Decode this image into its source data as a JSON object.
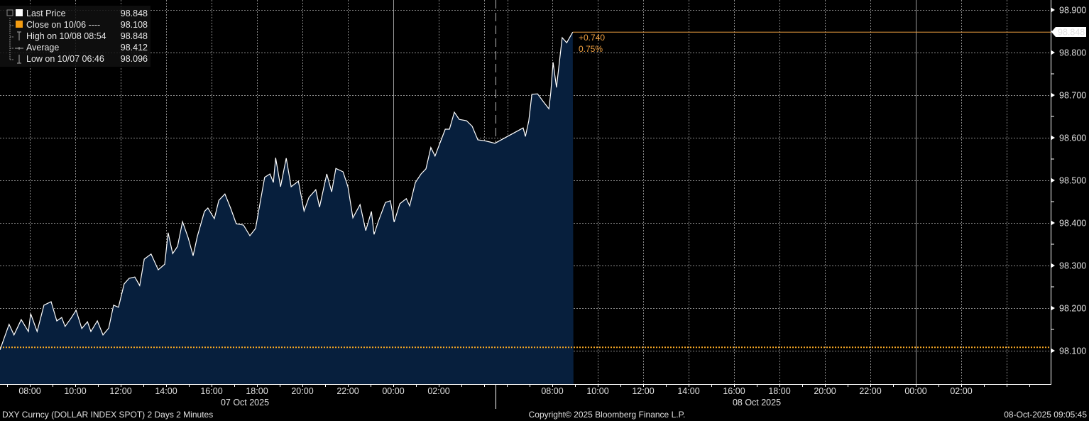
{
  "legend": {
    "items": [
      {
        "label": "Last Price",
        "value": "98.848",
        "icon": "white-square-icon"
      },
      {
        "label": "Close on 10/06 ----",
        "value": "98.108",
        "icon": "orange-square-icon"
      },
      {
        "label": "High on 10/08 08:54",
        "value": "98.848",
        "icon": "high-marker-icon"
      },
      {
        "label": "Average",
        "value": "98.412",
        "icon": "average-marker-icon"
      },
      {
        "label": "Low on 10/07 06:46",
        "value": "98.096",
        "icon": "low-marker-icon"
      }
    ]
  },
  "annotations": {
    "change": "+0.740",
    "change_pct": "0.75%",
    "last_tag": "98.848"
  },
  "footer": {
    "left": "DXY Curncy (DOLLAR INDEX SPOT) 2 Days 2 Minutes",
    "center": "Copyright© 2025 Bloomberg Finance L.P.",
    "right": "08-Oct-2025 09:05:45"
  },
  "colors": {
    "background": "#000000",
    "line": "#ffffff",
    "fill": "#071f3d",
    "close": "#f5a623",
    "last": "#f0a040",
    "grid": "#8a8a8a"
  },
  "chart_data": {
    "type": "area",
    "title": "",
    "xlabel": "",
    "ylabel": "",
    "ylim": [
      98.03,
      98.92
    ],
    "yticks": [
      "98.100",
      "98.200",
      "98.300",
      "98.400",
      "98.500",
      "98.600",
      "98.700",
      "98.800",
      "98.900"
    ],
    "grid": true,
    "legend_position": "top-left",
    "y_axis_side": "right",
    "close_reference": 98.108,
    "last_price": 98.848,
    "x_days": [
      {
        "date": "07 Oct 2025",
        "ticks": [
          "08:00",
          "10:00",
          "12:00",
          "14:00",
          "16:00",
          "18:00",
          "20:00",
          "22:00",
          "00:00",
          "02:00"
        ]
      },
      {
        "date": "08 Oct 2025",
        "ticks": [
          "08:00",
          "10:00",
          "12:00",
          "14:00",
          "16:00",
          "18:00",
          "20:00",
          "22:00",
          "00:00",
          "02:00"
        ]
      }
    ],
    "series": [
      {
        "points": [
          [
            "10/07 06:41",
            98.102
          ],
          [
            "10/07 07:05",
            98.162
          ],
          [
            "10/07 07:18",
            98.137
          ],
          [
            "10/07 07:37",
            98.173
          ],
          [
            "10/07 07:56",
            98.145
          ],
          [
            "10/07 08:02",
            98.187
          ],
          [
            "10/07 08:19",
            98.145
          ],
          [
            "10/07 08:37",
            98.207
          ],
          [
            "10/07 08:56",
            98.215
          ],
          [
            "10/07 09:11",
            98.17
          ],
          [
            "10/07 09:24",
            98.178
          ],
          [
            "10/07 09:33",
            98.157
          ],
          [
            "10/07 09:49",
            98.177
          ],
          [
            "10/07 10:02",
            98.195
          ],
          [
            "10/07 10:17",
            98.152
          ],
          [
            "10/07 10:32",
            98.168
          ],
          [
            "10/07 10:41",
            98.145
          ],
          [
            "10/07 10:58",
            98.17
          ],
          [
            "10/07 11:13",
            98.137
          ],
          [
            "10/07 11:28",
            98.153
          ],
          [
            "10/07 11:41",
            98.207
          ],
          [
            "10/07 11:54",
            98.202
          ],
          [
            "10/07 12:09",
            98.257
          ],
          [
            "10/07 12:22",
            98.27
          ],
          [
            "10/07 12:37",
            98.273
          ],
          [
            "10/07 12:50",
            98.253
          ],
          [
            "10/07 13:02",
            98.315
          ],
          [
            "10/07 13:20",
            98.327
          ],
          [
            "10/07 13:39",
            98.29
          ],
          [
            "10/07 13:56",
            98.303
          ],
          [
            "10/07 14:05",
            98.377
          ],
          [
            "10/07 14:17",
            98.328
          ],
          [
            "10/07 14:30",
            98.345
          ],
          [
            "10/07 14:43",
            98.403
          ],
          [
            "10/07 14:58",
            98.365
          ],
          [
            "10/07 15:11",
            98.323
          ],
          [
            "10/07 15:22",
            98.368
          ],
          [
            "10/07 15:41",
            98.427
          ],
          [
            "10/07 15:50",
            98.435
          ],
          [
            "10/07 16:07",
            98.41
          ],
          [
            "10/07 16:19",
            98.453
          ],
          [
            "10/07 16:35",
            98.468
          ],
          [
            "10/07 16:50",
            98.435
          ],
          [
            "10/07 17:05",
            98.398
          ],
          [
            "10/07 17:24",
            98.395
          ],
          [
            "10/07 17:41",
            98.37
          ],
          [
            "10/07 17:56",
            98.387
          ],
          [
            "10/07 18:09",
            98.452
          ],
          [
            "10/07 18:20",
            98.507
          ],
          [
            "10/07 18:34",
            98.515
          ],
          [
            "10/07 18:43",
            98.495
          ],
          [
            "10/07 18:49",
            98.553
          ],
          [
            "10/07 19:02",
            98.485
          ],
          [
            "10/07 19:17",
            98.552
          ],
          [
            "10/07 19:30",
            98.485
          ],
          [
            "10/07 19:49",
            98.498
          ],
          [
            "10/07 20:04",
            98.428
          ],
          [
            "10/07 20:17",
            98.46
          ],
          [
            "10/07 20:35",
            98.478
          ],
          [
            "10/07 20:45",
            98.437
          ],
          [
            "10/07 21:04",
            98.515
          ],
          [
            "10/07 21:17",
            98.473
          ],
          [
            "10/07 21:28",
            98.528
          ],
          [
            "10/07 21:47",
            98.52
          ],
          [
            "10/07 22:00",
            98.485
          ],
          [
            "10/07 22:13",
            98.412
          ],
          [
            "10/07 22:32",
            98.443
          ],
          [
            "10/07 22:47",
            98.382
          ],
          [
            "10/07 23:02",
            98.427
          ],
          [
            "10/07 23:09",
            98.373
          ],
          [
            "10/07 23:20",
            98.403
          ],
          [
            "10/07 23:39",
            98.448
          ],
          [
            "10/07 23:52",
            98.452
          ],
          [
            "10/08 00:02",
            98.402
          ],
          [
            "10/08 00:17",
            98.445
          ],
          [
            "10/08 00:34",
            98.457
          ],
          [
            "10/08 00:43",
            98.44
          ],
          [
            "10/08 00:58",
            98.495
          ],
          [
            "10/08 01:13",
            98.515
          ],
          [
            "10/08 01:26",
            98.527
          ],
          [
            "10/08 01:39",
            98.577
          ],
          [
            "10/08 01:50",
            98.557
          ],
          [
            "10/08 02:04",
            98.59
          ],
          [
            "10/08 02:17",
            98.62
          ],
          [
            "10/08 02:28",
            98.62
          ],
          [
            "10/08 02:41",
            98.66
          ],
          [
            "10/08 02:54",
            98.643
          ],
          [
            "10/08 03:13",
            98.64
          ],
          [
            "10/08 03:28",
            98.627
          ],
          [
            "10/08 03:43",
            98.595
          ],
          [
            "10/08 04:00",
            98.593
          ],
          [
            "10/08 04:15",
            98.59
          ],
          [
            "10/08 04:28",
            98.587
          ],
          [
            "10/08 06:43",
            98.623
          ],
          [
            "10/08 06:49",
            98.603
          ],
          [
            "10/08 06:58",
            98.64
          ],
          [
            "10/08 07:06",
            98.702
          ],
          [
            "10/08 07:21",
            98.703
          ],
          [
            "10/08 07:36",
            98.685
          ],
          [
            "10/08 07:51",
            98.668
          ],
          [
            "10/08 07:56",
            98.707
          ],
          [
            "10/08 08:02",
            98.777
          ],
          [
            "10/08 08:11",
            98.718
          ],
          [
            "10/08 08:26",
            98.835
          ],
          [
            "10/08 08:38",
            98.823
          ],
          [
            "10/08 08:54",
            98.848
          ]
        ]
      }
    ]
  }
}
